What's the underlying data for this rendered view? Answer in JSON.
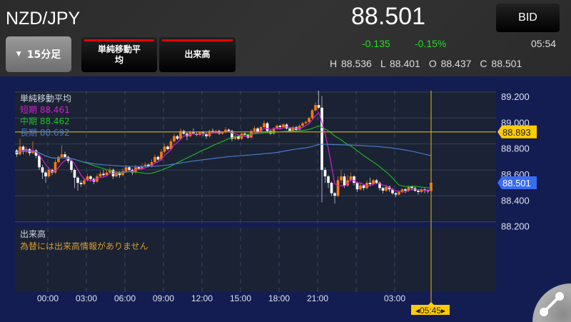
{
  "header": {
    "pair": "NZD/JPY",
    "timeframe": "15分足",
    "indicator_sma": "単純移動平均",
    "indicator_volume": "出来高",
    "price": "88.501",
    "bid_label": "BID",
    "change": "-0.135",
    "change_pct": "-0.15%",
    "time": "05:54",
    "high": "H 88.536",
    "low": "L 88.401",
    "open": "O 88.437",
    "close": "C 88.501"
  },
  "legend": {
    "title": "単純移動平均",
    "short": "短期 88.461",
    "mid": "中期 88.462",
    "long": "長期 88.692"
  },
  "volume": {
    "title": "出来高",
    "message": "為替には出来高情報がありません"
  },
  "colors": {
    "up": "#ff7a10",
    "down": "#ffffff",
    "short": "#d020d0",
    "mid": "#20b020",
    "long": "#4a78c8",
    "crosshair": "#c8a020",
    "tag_yellow": "#ffcc00",
    "tag_blue": "#3a6cf0",
    "title": "#cfd6e6",
    "vol_msg": "#d89a30"
  },
  "chart_data": {
    "type": "candlestick",
    "ylim": [
      88.2,
      89.2
    ],
    "yticks": [
      "89.200",
      "89.000",
      "88.800",
      "88.600",
      "88.400",
      "88.200"
    ],
    "xticks": [
      "00:00",
      "03:00",
      "06:00",
      "09:00",
      "12:00",
      "15:00",
      "18:00",
      "21:00",
      null,
      "03:00"
    ],
    "crosshair": {
      "price": "88.893",
      "time": "05:45"
    },
    "last_price": "88.501",
    "ohlc": [
      [
        88.72,
        88.76,
        88.7,
        88.74
      ],
      [
        88.74,
        88.75,
        88.68,
        88.7
      ],
      [
        88.7,
        88.79,
        88.69,
        88.77
      ],
      [
        88.77,
        88.8,
        88.74,
        88.75
      ],
      [
        88.75,
        88.76,
        88.7,
        88.72
      ],
      [
        88.72,
        88.84,
        88.71,
        88.78
      ],
      [
        88.78,
        88.79,
        88.72,
        88.74
      ],
      [
        88.74,
        88.78,
        88.73,
        88.76
      ],
      [
        88.76,
        88.77,
        88.71,
        88.73
      ],
      [
        88.73,
        88.82,
        88.72,
        88.75
      ],
      [
        88.75,
        88.76,
        88.69,
        88.71
      ],
      [
        88.71,
        88.72,
        88.6,
        88.62
      ],
      [
        88.62,
        88.64,
        88.53,
        88.58
      ],
      [
        88.58,
        88.59,
        88.5,
        88.55
      ],
      [
        88.55,
        88.62,
        88.54,
        88.6
      ],
      [
        88.6,
        88.61,
        88.56,
        88.58
      ],
      [
        88.58,
        88.68,
        88.57,
        88.66
      ],
      [
        88.66,
        88.71,
        88.65,
        88.7
      ],
      [
        88.7,
        88.79,
        88.69,
        88.72
      ],
      [
        88.72,
        88.74,
        88.69,
        88.7
      ],
      [
        88.7,
        88.71,
        88.65,
        88.67
      ],
      [
        88.67,
        88.68,
        88.58,
        88.6
      ],
      [
        88.6,
        88.61,
        88.46,
        88.54
      ],
      [
        88.54,
        88.55,
        88.44,
        88.5
      ],
      [
        88.5,
        88.52,
        88.47,
        88.49
      ],
      [
        88.49,
        88.54,
        88.48,
        88.52
      ],
      [
        88.52,
        88.57,
        88.51,
        88.55
      ],
      [
        88.55,
        88.56,
        88.51,
        88.53
      ],
      [
        88.53,
        88.54,
        88.49,
        88.51
      ],
      [
        88.51,
        88.57,
        88.5,
        88.55
      ],
      [
        88.55,
        88.59,
        88.54,
        88.57
      ],
      [
        88.57,
        88.6,
        88.55,
        88.56
      ],
      [
        88.56,
        88.6,
        88.55,
        88.58
      ],
      [
        88.58,
        88.62,
        88.57,
        88.6
      ],
      [
        88.6,
        88.61,
        88.53,
        88.55
      ],
      [
        88.55,
        88.59,
        88.54,
        88.58
      ],
      [
        88.58,
        88.59,
        88.54,
        88.56
      ],
      [
        88.56,
        88.61,
        88.55,
        88.59
      ],
      [
        88.59,
        88.64,
        88.58,
        88.62
      ],
      [
        88.62,
        88.63,
        88.59,
        88.6
      ],
      [
        88.6,
        88.61,
        88.56,
        88.58
      ],
      [
        88.58,
        88.64,
        88.57,
        88.62
      ],
      [
        88.62,
        88.63,
        88.6,
        88.61
      ],
      [
        88.61,
        88.65,
        88.6,
        88.63
      ],
      [
        88.63,
        88.66,
        88.62,
        88.64
      ],
      [
        88.64,
        88.65,
        88.62,
        88.63
      ],
      [
        88.63,
        88.68,
        88.62,
        88.66
      ],
      [
        88.66,
        88.72,
        88.65,
        88.7
      ],
      [
        88.7,
        88.71,
        88.67,
        88.68
      ],
      [
        88.68,
        88.76,
        88.67,
        88.74
      ],
      [
        88.74,
        88.8,
        88.73,
        88.78
      ],
      [
        88.78,
        88.79,
        88.75,
        88.76
      ],
      [
        88.76,
        88.84,
        88.75,
        88.82
      ],
      [
        88.82,
        88.88,
        88.81,
        88.86
      ],
      [
        88.86,
        88.87,
        88.83,
        88.84
      ],
      [
        88.84,
        88.92,
        88.83,
        88.9
      ],
      [
        88.9,
        88.91,
        88.87,
        88.88
      ],
      [
        88.88,
        88.89,
        88.83,
        88.86
      ],
      [
        88.86,
        88.9,
        88.85,
        88.89
      ],
      [
        88.89,
        88.92,
        88.87,
        88.88
      ],
      [
        88.88,
        88.89,
        88.86,
        88.87
      ],
      [
        88.87,
        88.9,
        88.86,
        88.89
      ],
      [
        88.89,
        88.9,
        88.86,
        88.88
      ],
      [
        88.88,
        88.89,
        88.84,
        88.86
      ],
      [
        88.86,
        88.91,
        88.85,
        88.9
      ],
      [
        88.9,
        88.92,
        88.88,
        88.89
      ],
      [
        88.89,
        88.91,
        88.88,
        88.9
      ],
      [
        88.9,
        88.91,
        88.87,
        88.88
      ],
      [
        88.88,
        88.9,
        88.87,
        88.89
      ],
      [
        88.89,
        88.93,
        88.88,
        88.91
      ],
      [
        88.91,
        88.92,
        88.89,
        88.9
      ],
      [
        88.9,
        88.91,
        88.82,
        88.84
      ],
      [
        88.84,
        88.87,
        88.83,
        88.86
      ],
      [
        88.86,
        88.87,
        88.83,
        88.84
      ],
      [
        88.84,
        88.89,
        88.83,
        88.88
      ],
      [
        88.88,
        88.89,
        88.86,
        88.87
      ],
      [
        88.87,
        88.88,
        88.84,
        88.85
      ],
      [
        88.85,
        88.91,
        88.84,
        88.9
      ],
      [
        88.9,
        88.94,
        88.89,
        88.92
      ],
      [
        88.92,
        88.93,
        88.88,
        88.89
      ],
      [
        88.89,
        88.94,
        88.88,
        88.93
      ],
      [
        88.93,
        88.98,
        88.92,
        88.96
      ],
      [
        88.96,
        88.97,
        88.89,
        88.9
      ],
      [
        88.9,
        88.91,
        88.87,
        88.88
      ],
      [
        88.88,
        88.93,
        88.87,
        88.92
      ],
      [
        88.92,
        88.95,
        88.91,
        88.94
      ],
      [
        88.94,
        88.95,
        88.92,
        88.93
      ],
      [
        88.93,
        88.96,
        88.92,
        88.95
      ],
      [
        88.95,
        88.96,
        88.91,
        88.92
      ],
      [
        88.92,
        88.93,
        88.89,
        88.9
      ],
      [
        88.9,
        88.94,
        88.89,
        88.93
      ],
      [
        88.93,
        88.94,
        88.9,
        88.91
      ],
      [
        88.91,
        88.95,
        88.9,
        88.94
      ],
      [
        88.94,
        88.97,
        88.93,
        88.96
      ],
      [
        88.96,
        88.98,
        88.95,
        88.97
      ],
      [
        88.97,
        89.01,
        88.96,
        89.0
      ],
      [
        89.0,
        89.07,
        88.99,
        89.06
      ],
      [
        89.06,
        89.12,
        89.05,
        89.1
      ],
      [
        89.1,
        89.22,
        89.07,
        89.08
      ],
      [
        89.08,
        89.17,
        88.35,
        88.6
      ],
      [
        88.6,
        88.62,
        88.5,
        88.55
      ],
      [
        88.55,
        88.56,
        88.46,
        88.5
      ],
      [
        88.5,
        88.51,
        88.4,
        88.42
      ],
      [
        88.42,
        88.43,
        88.34,
        88.4
      ],
      [
        88.4,
        88.55,
        88.39,
        88.52
      ],
      [
        88.52,
        88.6,
        88.5,
        88.55
      ],
      [
        88.55,
        88.57,
        88.46,
        88.48
      ],
      [
        88.48,
        88.56,
        88.47,
        88.52
      ],
      [
        88.52,
        88.58,
        88.51,
        88.55
      ],
      [
        88.55,
        88.56,
        88.48,
        88.5
      ],
      [
        88.5,
        88.51,
        88.43,
        88.45
      ],
      [
        88.45,
        88.5,
        88.44,
        88.48
      ],
      [
        88.48,
        88.49,
        88.44,
        88.46
      ],
      [
        88.46,
        88.52,
        88.45,
        88.5
      ],
      [
        88.5,
        88.54,
        88.48,
        88.49
      ],
      [
        88.49,
        88.53,
        88.48,
        88.52
      ],
      [
        88.52,
        88.53,
        88.49,
        88.5
      ],
      [
        88.5,
        88.51,
        88.44,
        88.46
      ],
      [
        88.46,
        88.47,
        88.42,
        88.44
      ],
      [
        88.44,
        88.48,
        88.43,
        88.47
      ],
      [
        88.47,
        88.48,
        88.43,
        88.45
      ],
      [
        88.45,
        88.46,
        88.41,
        88.42
      ],
      [
        88.42,
        88.43,
        88.39,
        88.41
      ],
      [
        88.41,
        88.44,
        88.4,
        88.43
      ],
      [
        88.43,
        88.46,
        88.42,
        88.45
      ],
      [
        88.45,
        88.46,
        88.42,
        88.44
      ],
      [
        88.44,
        88.48,
        88.43,
        88.47
      ],
      [
        88.47,
        88.48,
        88.44,
        88.46
      ],
      [
        88.46,
        88.47,
        88.43,
        88.44
      ],
      [
        88.44,
        88.45,
        88.41,
        88.43
      ],
      [
        88.43,
        88.46,
        88.42,
        88.45
      ],
      [
        88.45,
        88.46,
        88.42,
        88.44
      ],
      [
        88.44,
        88.45,
        88.42,
        88.437
      ],
      [
        88.437,
        88.536,
        88.401,
        88.501
      ]
    ]
  }
}
